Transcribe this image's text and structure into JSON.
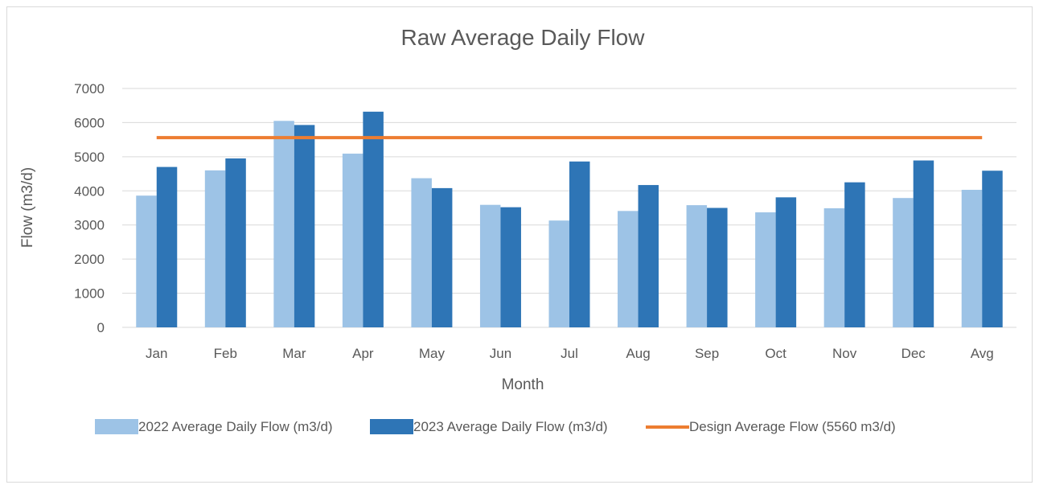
{
  "chart_data": {
    "type": "bar",
    "title": "Raw Average Daily Flow",
    "x_label": "Month",
    "y_label": "Flow (m3/d)",
    "categories": [
      "Jan",
      "Feb",
      "Mar",
      "Apr",
      "May",
      "Jun",
      "Jul",
      "Aug",
      "Sep",
      "Oct",
      "Nov",
      "Dec",
      "Avg"
    ],
    "series": [
      {
        "name": "2022 Average Daily Flow (m3/d)",
        "color": "#9dc3e6",
        "values": [
          3860,
          4600,
          6050,
          5090,
          4370,
          3590,
          3130,
          3410,
          3580,
          3370,
          3490,
          3790,
          4030
        ]
      },
      {
        "name": "2023 Average Daily Flow (m3/d)",
        "color": "#2e75b6",
        "values": [
          4700,
          4950,
          5930,
          6320,
          4080,
          3520,
          4860,
          4170,
          3500,
          3810,
          4250,
          4890,
          4590
        ]
      },
      {
        "name": "Design Average Flow (5560 m3/d)",
        "color": "#ed7d31",
        "type": "line",
        "values": [
          5560,
          5560,
          5560,
          5560,
          5560,
          5560,
          5560,
          5560,
          5560,
          5560,
          5560,
          5560,
          5560
        ]
      }
    ],
    "ylim": [
      0,
      7000
    ],
    "yticks": [
      0,
      1000,
      2000,
      3000,
      4000,
      5000,
      6000,
      7000
    ],
    "grid": true,
    "legend": "bottom"
  }
}
